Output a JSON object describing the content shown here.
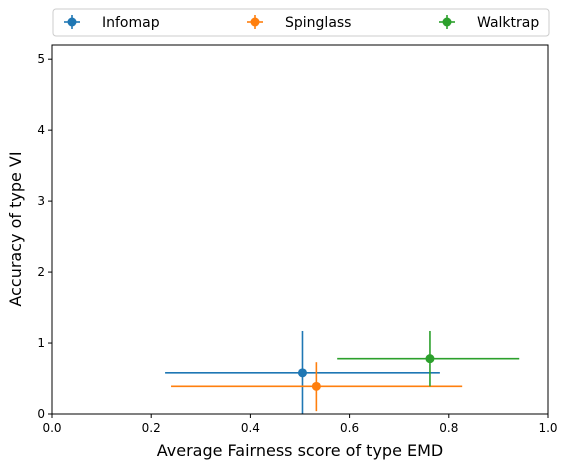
{
  "chart_data": {
    "type": "scatter",
    "title": "",
    "xlabel": "Average Fairness score of type EMD",
    "ylabel": "Accuracy of type VI",
    "xlim": [
      0.0,
      1.0
    ],
    "ylim": [
      0.0,
      5.2
    ],
    "x_ticks": [
      "0.0",
      "0.2",
      "0.4",
      "0.6",
      "0.8",
      "1.0"
    ],
    "y_ticks": [
      "0",
      "1",
      "2",
      "3",
      "4",
      "5"
    ],
    "grid": false,
    "legend_position": "top, outside, 3 columns",
    "series": [
      {
        "name": "Infomap",
        "color": "#1f77b4",
        "x": 0.505,
        "y": 0.58,
        "xerr": [
          0.228,
          0.782
        ],
        "yerr": [
          0.0,
          1.17
        ]
      },
      {
        "name": "Spinglass",
        "color": "#ff7f0e",
        "x": 0.533,
        "y": 0.39,
        "xerr": [
          0.24,
          0.827
        ],
        "yerr": [
          0.04,
          0.73
        ]
      },
      {
        "name": "Walktrap",
        "color": "#2ca02c",
        "x": 0.762,
        "y": 0.78,
        "xerr": [
          0.575,
          0.942
        ],
        "yerr": [
          0.39,
          1.17
        ]
      }
    ]
  }
}
